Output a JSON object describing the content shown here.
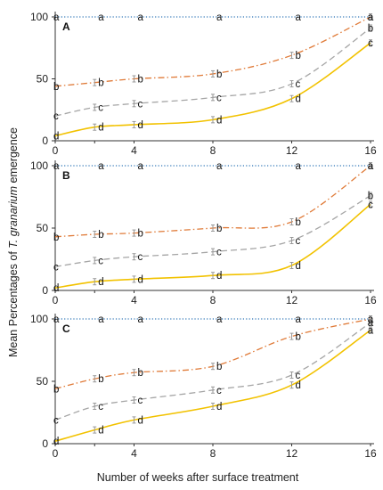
{
  "chart_data": {
    "type": "line",
    "ylabel_prefix": "Mean Percentages of ",
    "ylabel_italic": "T. granarium",
    "ylabel_suffix": " emergence",
    "xlabel": "Number of weeks after surface treatment",
    "x": [
      0,
      2,
      4,
      8,
      12,
      16
    ],
    "xticks": [
      0,
      4,
      8,
      12,
      16
    ],
    "yticks": [
      0,
      50,
      100
    ],
    "xlim": [
      0,
      16
    ],
    "ylim": [
      0,
      100
    ],
    "grid": false,
    "colors": {
      "blue": "#2e75b6",
      "orange": "#e07b39",
      "gray": "#a5a5a5",
      "yellow": "#f2c200"
    },
    "panels": [
      {
        "label": "A",
        "series": [
          {
            "color_key": "blue",
            "style": "dotted",
            "values": [
              100,
              100,
              100,
              100,
              100,
              100
            ],
            "letters": [
              "a",
              "a",
              "a",
              "a",
              "a",
              "a"
            ]
          },
          {
            "color_key": "orange",
            "style": "dashdot",
            "values": [
              44,
              47,
              50,
              54,
              69,
              100
            ],
            "letters": [
              "b",
              "b",
              "b",
              "b",
              "b",
              "a"
            ]
          },
          {
            "color_key": "gray",
            "style": "dashed",
            "values": [
              20,
              27,
              30,
              35,
              46,
              91
            ],
            "letters": [
              "c",
              "c",
              "c",
              "c",
              "c",
              "b"
            ]
          },
          {
            "color_key": "yellow",
            "style": "solid",
            "values": [
              4,
              11,
              13,
              17,
              34,
              79
            ],
            "letters": [
              "d",
              "d",
              "d",
              "d",
              "d",
              "c"
            ]
          }
        ]
      },
      {
        "label": "B",
        "series": [
          {
            "color_key": "blue",
            "style": "dotted",
            "values": [
              100,
              100,
              100,
              100,
              100,
              100
            ],
            "letters": [
              "a",
              "a",
              "a",
              "a",
              "a",
              "a"
            ]
          },
          {
            "color_key": "orange",
            "style": "dashdot",
            "values": [
              43,
              45,
              46,
              50,
              55,
              100
            ],
            "letters": [
              "b",
              "b",
              "b",
              "b",
              "b",
              "a"
            ]
          },
          {
            "color_key": "gray",
            "style": "dashed",
            "values": [
              19,
              24,
              27,
              31,
              40,
              76
            ],
            "letters": [
              "c",
              "c",
              "c",
              "c",
              "c",
              "b"
            ]
          },
          {
            "color_key": "yellow",
            "style": "solid",
            "values": [
              2,
              7,
              9,
              12,
              20,
              69
            ],
            "letters": [
              "d",
              "d",
              "d",
              "d",
              "d",
              "c"
            ]
          }
        ]
      },
      {
        "label": "C",
        "series": [
          {
            "color_key": "blue",
            "style": "dotted",
            "values": [
              100,
              100,
              100,
              100,
              100,
              100
            ],
            "letters": [
              "a",
              "a",
              "a",
              "a",
              "a",
              "a"
            ]
          },
          {
            "color_key": "orange",
            "style": "dashdot",
            "values": [
              44,
              52,
              57,
              62,
              86,
              100
            ],
            "letters": [
              "b",
              "b",
              "b",
              "b",
              "b",
              "a"
            ]
          },
          {
            "color_key": "gray",
            "style": "dashed",
            "values": [
              19,
              30,
              35,
              43,
              55,
              97
            ],
            "letters": [
              "c",
              "c",
              "c",
              "c",
              "c",
              "a"
            ]
          },
          {
            "color_key": "yellow",
            "style": "solid",
            "values": [
              2,
              11,
              19,
              30,
              47,
              91
            ],
            "letters": [
              "d",
              "d",
              "d",
              "d",
              "d",
              "a"
            ]
          }
        ]
      }
    ]
  }
}
